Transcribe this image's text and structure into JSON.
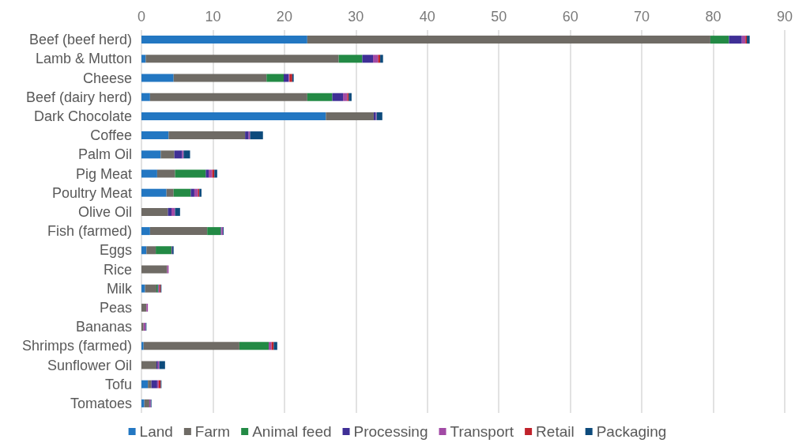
{
  "chart_data": {
    "type": "bar",
    "orientation": "horizontal",
    "stacked": true,
    "categories": [
      "Beef (beef herd)",
      "Lamb & Mutton",
      "Cheese",
      "Beef (dairy herd)",
      "Dark Chocolate",
      "Coffee",
      "Palm Oil",
      "Pig Meat",
      "Poultry Meat",
      "Olive Oil",
      "Fish (farmed)",
      "Eggs",
      "Rice",
      "Milk",
      "Peas",
      "Bananas",
      "Shrimps (farmed)",
      "Sunflower Oil",
      "Tofu",
      "Tomatoes"
    ],
    "series": [
      {
        "name": "Land",
        "color": "#2377c2",
        "values": [
          23.2,
          0.6,
          4.5,
          1.2,
          25.8,
          3.8,
          2.7,
          2.2,
          3.5,
          0,
          1.2,
          0.7,
          0,
          0.5,
          0,
          0,
          0.3,
          0,
          0.9,
          0.4
        ]
      },
      {
        "name": "Farm",
        "color": "#6f6b65",
        "values": [
          56.4,
          27.0,
          13.0,
          22.0,
          6.7,
          10.7,
          1.9,
          2.5,
          1.0,
          3.7,
          8.0,
          1.3,
          3.6,
          1.6,
          0.7,
          0.3,
          13.4,
          2.1,
          0.5,
          0.7
        ]
      },
      {
        "name": "Animal feed",
        "color": "#238a45",
        "values": [
          2.6,
          3.3,
          2.4,
          3.5,
          0,
          0,
          0,
          4.3,
          2.4,
          0,
          1.9,
          2.2,
          0,
          0.2,
          0,
          0,
          4.1,
          0,
          0,
          0
        ]
      },
      {
        "name": "Processing",
        "color": "#3f2f96",
        "values": [
          1.8,
          1.5,
          0.7,
          1.5,
          0.3,
          0.5,
          1.1,
          0.4,
          0.5,
          0.5,
          0.1,
          0,
          0,
          0.1,
          0,
          0,
          0,
          0.2,
          0.8,
          0
        ]
      },
      {
        "name": "Transport",
        "color": "#a24aa5",
        "values": [
          0.5,
          0.7,
          0.1,
          0.6,
          0.1,
          0.2,
          0.2,
          0.5,
          0.5,
          0.5,
          0.2,
          0.1,
          0.2,
          0.1,
          0.2,
          0.3,
          0.4,
          0.2,
          0.2,
          0.2
        ]
      },
      {
        "name": "Retail",
        "color": "#c0222b",
        "values": [
          0.2,
          0.3,
          0.4,
          0.2,
          0,
          0,
          0,
          0.3,
          0.2,
          0,
          0,
          0,
          0,
          0.2,
          0,
          0,
          0.3,
          0,
          0.3,
          0
        ]
      },
      {
        "name": "Packaging",
        "color": "#0d4b7c",
        "values": [
          0.4,
          0.4,
          0.2,
          0.4,
          0.8,
          1.8,
          0.9,
          0.4,
          0.3,
          0.7,
          0.1,
          0.2,
          0,
          0.1,
          0,
          0.1,
          0.5,
          0.8,
          0.1,
          0.1
        ]
      }
    ],
    "xlim": [
      0,
      90
    ],
    "xticks": [
      0,
      10,
      20,
      30,
      40,
      50,
      60,
      70,
      80,
      90
    ],
    "grid": "x",
    "legend": "bottom"
  }
}
